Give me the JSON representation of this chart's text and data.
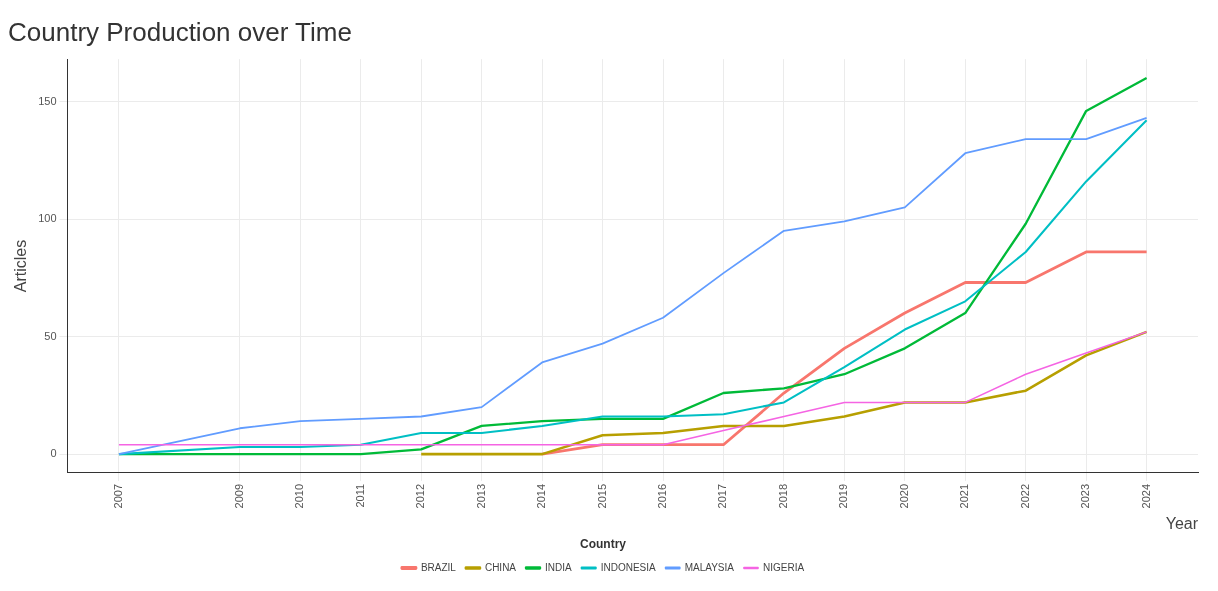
{
  "chart_data": {
    "type": "line",
    "title": "Country Production over Time",
    "xlabel": "Year",
    "ylabel": "Articles",
    "legend_title": "Country",
    "x": [
      2007,
      2009,
      2010,
      2011,
      2012,
      2013,
      2014,
      2015,
      2016,
      2017,
      2018,
      2019,
      2020,
      2021,
      2022,
      2023,
      2024
    ],
    "series": [
      {
        "name": "BRAZIL",
        "color": "#f8766d",
        "values": [
          null,
          null,
          null,
          null,
          null,
          null,
          0,
          4,
          4,
          4,
          26,
          45,
          60,
          73,
          73,
          86,
          86
        ]
      },
      {
        "name": "CHINA",
        "color": "#b79f00",
        "values": [
          null,
          null,
          null,
          null,
          0,
          0,
          0,
          8,
          9,
          12,
          12,
          16,
          22,
          22,
          27,
          42,
          52
        ]
      },
      {
        "name": "INDIA",
        "color": "#00ba38",
        "values": [
          0,
          0,
          0,
          0,
          2,
          12,
          14,
          15,
          15,
          26,
          28,
          34,
          45,
          60,
          98,
          146,
          160
        ]
      },
      {
        "name": "INDONESIA",
        "color": "#00bfc4",
        "values": [
          0,
          3,
          3,
          4,
          9,
          9,
          12,
          16,
          16,
          17,
          22,
          37,
          53,
          65,
          86,
          116,
          142
        ]
      },
      {
        "name": "MALAYSIA",
        "color": "#619cff",
        "values": [
          0,
          11,
          14,
          15,
          16,
          20,
          39,
          47,
          58,
          77,
          95,
          99,
          105,
          128,
          134,
          134,
          143
        ]
      },
      {
        "name": "NIGERIA",
        "color": "#f564e3",
        "values": [
          4,
          4,
          4,
          4,
          4,
          4,
          4,
          4,
          4,
          10,
          16,
          22,
          22,
          22,
          34,
          43,
          52
        ]
      }
    ],
    "xlim": [
      2006.15,
      2024.85
    ],
    "xticks": [
      2007,
      2009,
      2010,
      2011,
      2012,
      2013,
      2014,
      2015,
      2016,
      2017,
      2018,
      2019,
      2020,
      2021,
      2022,
      2023,
      2024
    ],
    "ylim": [
      -8,
      168
    ],
    "yticks": [
      0,
      50,
      100,
      150
    ],
    "grid": true,
    "legend": "bottom",
    "marker": "none",
    "line_style": "solid"
  }
}
